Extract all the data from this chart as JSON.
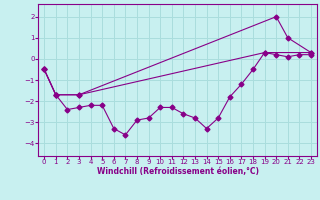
{
  "xlabel": "Windchill (Refroidissement éolien,°C)",
  "bg_color": "#c8f0f0",
  "line_color": "#880088",
  "grid_color": "#aadddd",
  "x_ticks": [
    0,
    1,
    2,
    3,
    4,
    5,
    6,
    7,
    8,
    9,
    10,
    11,
    12,
    13,
    14,
    15,
    16,
    17,
    18,
    19,
    20,
    21,
    22,
    23
  ],
  "y_ticks": [
    -4,
    -3,
    -2,
    -1,
    0,
    1,
    2
  ],
  "ylim": [
    -4.6,
    2.6
  ],
  "xlim": [
    -0.5,
    23.5
  ],
  "line1": {
    "x": [
      0,
      1,
      2,
      3,
      4,
      5,
      6,
      7,
      8,
      9,
      10,
      11,
      12,
      13,
      14,
      15,
      16,
      17,
      18,
      19,
      20,
      21,
      22,
      23
    ],
    "y": [
      -0.5,
      -1.7,
      -2.4,
      -2.3,
      -2.2,
      -2.2,
      -3.3,
      -3.6,
      -2.9,
      -2.8,
      -2.3,
      -2.3,
      -2.6,
      -2.8,
      -3.3,
      -2.8,
      -1.8,
      -1.2,
      -0.5,
      0.3,
      0.2,
      0.1,
      0.2,
      0.2
    ]
  },
  "line2": {
    "x": [
      0,
      1,
      3,
      20,
      21,
      23
    ],
    "y": [
      -0.5,
      -1.7,
      -1.7,
      2.0,
      1.0,
      0.3
    ]
  },
  "line3": {
    "x": [
      0,
      1,
      3,
      19,
      23
    ],
    "y": [
      -0.5,
      -1.7,
      -1.7,
      0.3,
      0.3
    ]
  }
}
